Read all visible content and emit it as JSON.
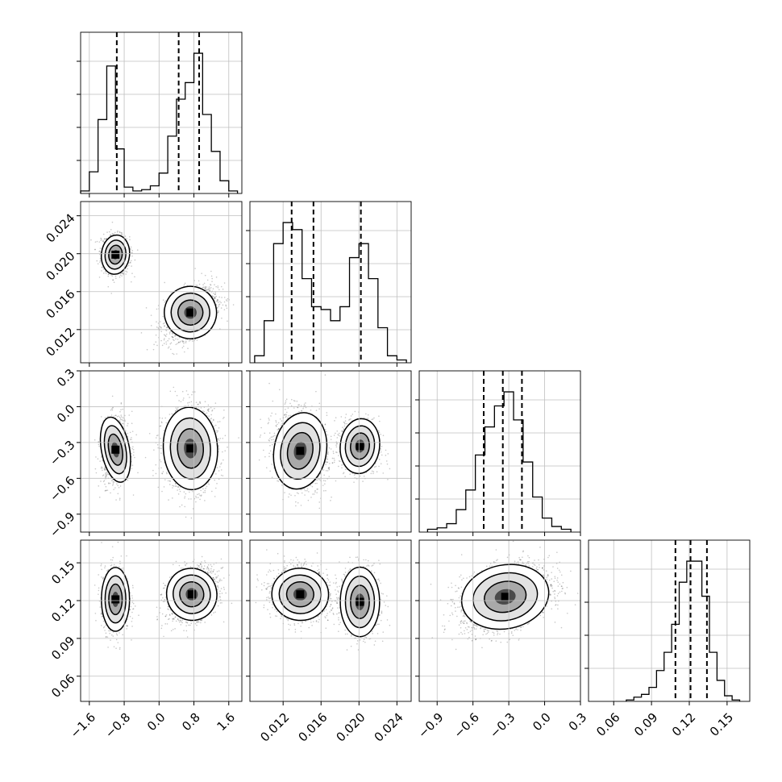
{
  "chart_data": {
    "type": "corner",
    "grid": true,
    "params": [
      {
        "range": [
          -1.8,
          1.9
        ],
        "ticks": [
          -1.6,
          -0.8,
          0.0,
          0.8,
          1.6
        ],
        "tick_labels": [
          "−1.6",
          "−0.8",
          "0.0",
          "0.8",
          "1.6"
        ],
        "quantiles": [
          -0.97,
          0.45,
          0.92
        ],
        "modes": [
          {
            "mu": -1.0,
            "sd": 0.17,
            "w": 0.38
          },
          {
            "mu": 0.72,
            "sd": 0.29,
            "w": 0.62
          }
        ],
        "hist_bins": [
          -1.8,
          -1.6,
          -1.4,
          -1.2,
          -1.0,
          -0.8,
          -0.6,
          -0.4,
          -0.2,
          0.0,
          0.2,
          0.4,
          0.6,
          0.8,
          1.0,
          1.2,
          1.4,
          1.6,
          1.8
        ],
        "hist_counts": [
          0.02,
          0.17,
          0.58,
          1.0,
          0.35,
          0.05,
          0.02,
          0.03,
          0.06,
          0.16,
          0.45,
          0.74,
          0.87,
          1.1,
          0.62,
          0.33,
          0.1,
          0.02
        ]
      },
      {
        "range": [
          0.0085,
          0.0255
        ],
        "ticks": [
          0.012,
          0.016,
          0.02,
          0.024
        ],
        "tick_labels": [
          "0.012",
          "0.016",
          "0.020",
          "0.024"
        ],
        "quantiles": [
          0.0129,
          0.0152,
          0.0202
        ],
        "modes": [
          {
            "mu": 0.0138,
            "sd": 0.0012,
            "w": 0.62
          },
          {
            "mu": 0.0201,
            "sd": 0.0009,
            "w": 0.38
          }
        ],
        "hist_bins": [
          0.009,
          0.01,
          0.011,
          0.012,
          0.013,
          0.014,
          0.015,
          0.016,
          0.017,
          0.018,
          0.019,
          0.02,
          0.021,
          0.022,
          0.023,
          0.024,
          0.025
        ],
        "hist_counts": [
          0.05,
          0.3,
          0.85,
          1.0,
          0.95,
          0.6,
          0.4,
          0.38,
          0.3,
          0.4,
          0.75,
          0.85,
          0.6,
          0.25,
          0.05,
          0.02
        ]
      },
      {
        "range": [
          -1.05,
          0.3
        ],
        "ticks": [
          -0.9,
          -0.6,
          -0.3,
          0.0,
          0.3
        ],
        "tick_labels": [
          "−0.9",
          "−0.6",
          "−0.3",
          "0.0",
          "0.3"
        ],
        "quantiles": [
          -0.51,
          -0.35,
          -0.19
        ],
        "modes": [
          {
            "mu": -0.35,
            "sd": 0.13,
            "w": 1.0
          }
        ],
        "hist_bins": [
          -0.98,
          -0.9,
          -0.82,
          -0.74,
          -0.66,
          -0.58,
          -0.5,
          -0.42,
          -0.34,
          -0.26,
          -0.18,
          -0.1,
          -0.02,
          0.06,
          0.14,
          0.22
        ],
        "hist_counts": [
          0.02,
          0.03,
          0.06,
          0.16,
          0.3,
          0.55,
          0.75,
          0.9,
          1.0,
          0.8,
          0.5,
          0.25,
          0.1,
          0.04,
          0.02
        ]
      },
      {
        "range": [
          0.04,
          0.168
        ],
        "ticks": [
          0.06,
          0.09,
          0.12,
          0.15
        ],
        "tick_labels": [
          "0.06",
          "0.09",
          "0.12",
          "0.15"
        ],
        "quantiles": [
          0.109,
          0.121,
          0.134
        ],
        "modes": [
          {
            "mu": 0.122,
            "sd": 0.011,
            "w": 1.0
          }
        ],
        "hist_bins": [
          0.07,
          0.076,
          0.082,
          0.088,
          0.094,
          0.1,
          0.106,
          0.112,
          0.118,
          0.124,
          0.13,
          0.136,
          0.142,
          0.148,
          0.154,
          0.16
        ],
        "hist_counts": [
          0.01,
          0.03,
          0.05,
          0.1,
          0.22,
          0.35,
          0.55,
          0.85,
          1.0,
          1.0,
          0.75,
          0.35,
          0.15,
          0.04,
          0.01
        ]
      }
    ],
    "joint": [
      {
        "row": 1,
        "col": 0,
        "blobs": [
          {
            "cx": -1.0,
            "cy": 0.0199,
            "sx": 0.14,
            "sy": 0.0009,
            "rho": -0.1,
            "w": 0.38
          },
          {
            "cx": 0.72,
            "cy": 0.0138,
            "sx": 0.26,
            "sy": 0.0012,
            "rho": 0.45,
            "w": 0.62
          }
        ]
      },
      {
        "row": 2,
        "col": 0,
        "blobs": [
          {
            "cx": -1.0,
            "cy": -0.36,
            "sx": 0.14,
            "sy": 0.12,
            "rho": 0.1,
            "w": 0.38
          },
          {
            "cx": 0.72,
            "cy": -0.35,
            "sx": 0.27,
            "sy": 0.15,
            "rho": 0.05,
            "w": 0.62
          }
        ]
      },
      {
        "row": 2,
        "col": 1,
        "blobs": [
          {
            "cx": 0.0138,
            "cy": -0.37,
            "sx": 0.0012,
            "sy": 0.14,
            "rho": -0.15,
            "w": 0.62
          },
          {
            "cx": 0.0201,
            "cy": -0.33,
            "sx": 0.0009,
            "sy": 0.1,
            "rho": -0.1,
            "w": 0.38
          }
        ]
      },
      {
        "row": 3,
        "col": 0,
        "blobs": [
          {
            "cx": -1.0,
            "cy": 0.121,
            "sx": 0.14,
            "sy": 0.011,
            "rho": 0.0,
            "w": 0.38
          },
          {
            "cx": 0.75,
            "cy": 0.125,
            "sx": 0.25,
            "sy": 0.009,
            "rho": 0.3,
            "w": 0.62
          }
        ]
      },
      {
        "row": 3,
        "col": 1,
        "blobs": [
          {
            "cx": 0.0138,
            "cy": 0.125,
            "sx": 0.0013,
            "sy": 0.009,
            "rho": -0.1,
            "w": 0.62
          },
          {
            "cx": 0.0201,
            "cy": 0.119,
            "sx": 0.0009,
            "sy": 0.012,
            "rho": 0.0,
            "w": 0.38
          }
        ]
      },
      {
        "row": 3,
        "col": 2,
        "blobs": [
          {
            "cx": -0.33,
            "cy": 0.123,
            "sx": 0.16,
            "sy": 0.011,
            "rho": 0.35,
            "w": 1.0
          }
        ]
      }
    ]
  }
}
